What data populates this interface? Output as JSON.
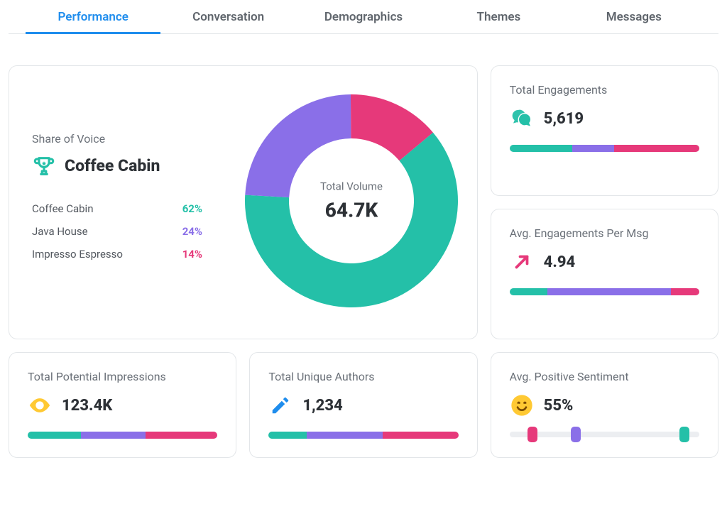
{
  "colors": {
    "teal": "#24c0a8",
    "purple": "#8a6fe8",
    "pink": "#e6397a",
    "blue": "#1f8ded",
    "yellow": "#ffc933",
    "text_primary": "#2d3136",
    "text_secondary": "#6a7078",
    "border": "#e3e6e9",
    "bar_bg": "#eef0f3"
  },
  "tabs": [
    {
      "label": "Performance",
      "active": true
    },
    {
      "label": "Conversation",
      "active": false
    },
    {
      "label": "Demographics",
      "active": false
    },
    {
      "label": "Themes",
      "active": false
    },
    {
      "label": "Messages",
      "active": false
    }
  ],
  "share_of_voice": {
    "title": "Share of Voice",
    "winner_icon": "trophy-icon",
    "winner_name": "Coffee Cabin",
    "items": [
      {
        "name": "Coffee Cabin",
        "pct_label": "62%",
        "pct": 62,
        "color": "#24c0a8"
      },
      {
        "name": "Java House",
        "pct_label": "24%",
        "pct": 24,
        "color": "#8a6fe8"
      },
      {
        "name": "Impresso Espresso",
        "pct_label": "14%",
        "pct": 14,
        "color": "#e6397a"
      }
    ],
    "donut": {
      "type": "donut",
      "center_label": "Total Volume",
      "center_value": "64.7K",
      "outer_radius": 150,
      "inner_radius": 88,
      "start_angle_deg": -40,
      "background_color": "#ffffff",
      "slices": [
        {
          "value": 62,
          "color": "#24c0a8"
        },
        {
          "value": 24,
          "color": "#8a6fe8"
        },
        {
          "value": 14,
          "color": "#e6397a"
        }
      ]
    }
  },
  "cards": {
    "engagements": {
      "title": "Total Engagements",
      "icon": "chat-icon",
      "icon_color": "#24c0a8",
      "value": "5,619",
      "bar_segments": [
        {
          "pct": 33,
          "color": "#24c0a8"
        },
        {
          "pct": 22,
          "color": "#8a6fe8"
        },
        {
          "pct": 45,
          "color": "#e6397a"
        }
      ]
    },
    "avg_engagements": {
      "title": "Avg. Engagements Per Msg",
      "icon": "trend-up-icon",
      "icon_color": "#e6397a",
      "value": "4.94",
      "bar_segments": [
        {
          "pct": 20,
          "color": "#24c0a8"
        },
        {
          "pct": 65,
          "color": "#8a6fe8"
        },
        {
          "pct": 15,
          "color": "#e6397a"
        }
      ]
    },
    "impressions": {
      "title": "Total Potential Impressions",
      "icon": "eye-icon",
      "icon_color": "#ffc933",
      "value": "123.4K",
      "bar_segments": [
        {
          "pct": 28,
          "color": "#24c0a8"
        },
        {
          "pct": 34,
          "color": "#8a6fe8"
        },
        {
          "pct": 38,
          "color": "#e6397a"
        }
      ]
    },
    "authors": {
      "title": "Total Unique Authors",
      "icon": "pencil-icon",
      "icon_color": "#1f8ded",
      "value": "1,234",
      "bar_segments": [
        {
          "pct": 20,
          "color": "#24c0a8"
        },
        {
          "pct": 40,
          "color": "#8a6fe8"
        },
        {
          "pct": 40,
          "color": "#e6397a"
        }
      ]
    },
    "sentiment": {
      "title": "Avg. Positive Sentiment",
      "icon": "smile-icon",
      "icon_color": "#ffc933",
      "value": "55%",
      "slider_handles": [
        {
          "pos_pct": 12,
          "color": "#e6397a"
        },
        {
          "pos_pct": 35,
          "color": "#8a6fe8"
        },
        {
          "pos_pct": 92,
          "color": "#24c0a8"
        }
      ]
    }
  }
}
